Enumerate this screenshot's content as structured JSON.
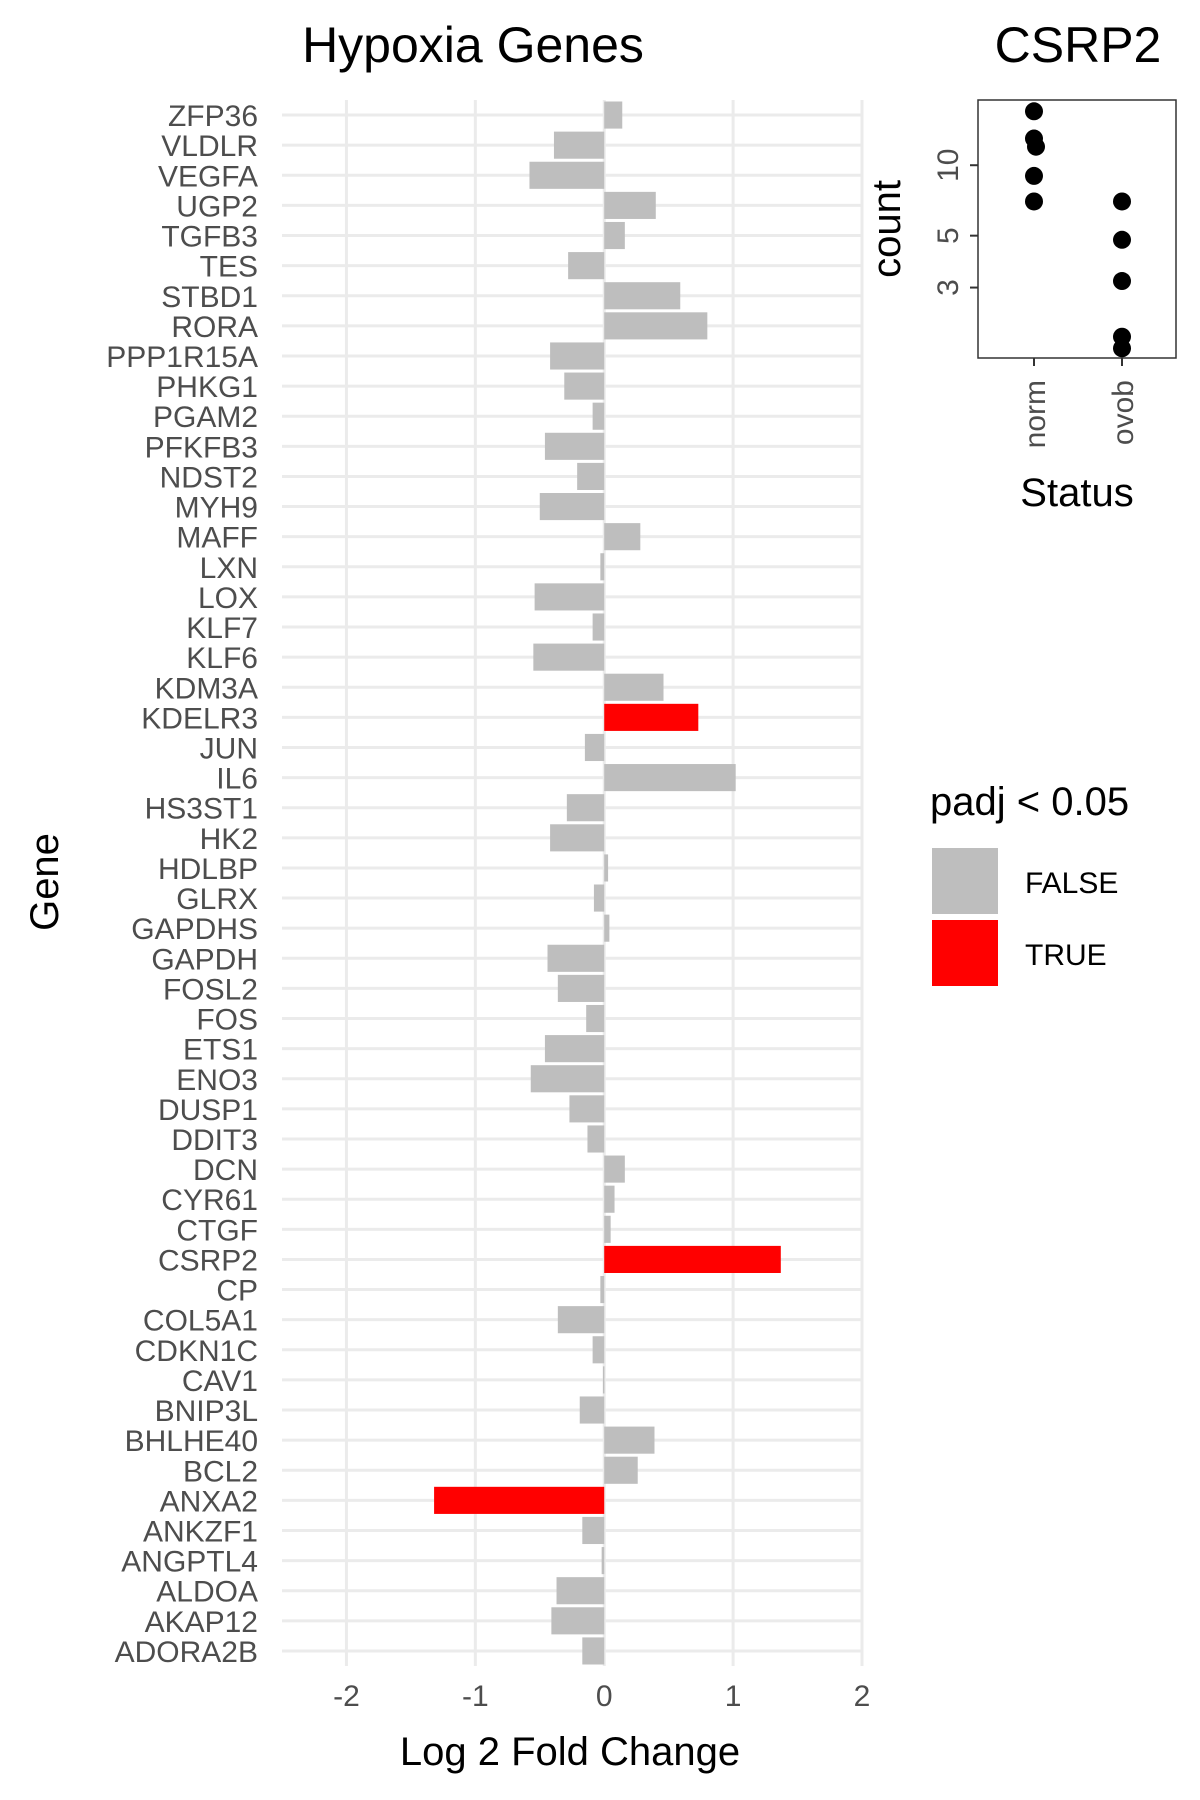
{
  "chart_data": [
    {
      "type": "bar",
      "orientation": "horizontal",
      "title": "Hypoxia Genes",
      "xlabel": "Log 2 Fold Change",
      "ylabel": "Gene",
      "xlim": [
        -2.5,
        2.0
      ],
      "xticks": [
        -2,
        -1,
        0,
        1,
        2
      ],
      "xtick_labels": [
        "-2",
        "-1",
        "0",
        "1",
        "2"
      ],
      "grid": true,
      "legend": {
        "title": "padj < 0.05",
        "placement": "right",
        "entries": [
          {
            "label": "FALSE",
            "color": "#bebebe"
          },
          {
            "label": "TRUE",
            "color": "#ff0000"
          }
        ]
      },
      "categories": [
        "ZFP36",
        "VLDLR",
        "VEGFA",
        "UGP2",
        "TGFB3",
        "TES",
        "STBD1",
        "RORA",
        "PPP1R15A",
        "PHKG1",
        "PGAM2",
        "PFKFB3",
        "NDST2",
        "MYH9",
        "MAFF",
        "LXN",
        "LOX",
        "KLF7",
        "KLF6",
        "KDM3A",
        "KDELR3",
        "JUN",
        "IL6",
        "HS3ST1",
        "HK2",
        "HDLBP",
        "GLRX",
        "GAPDHS",
        "GAPDH",
        "FOSL2",
        "FOS",
        "ETS1",
        "ENO3",
        "DUSP1",
        "DDIT3",
        "DCN",
        "CYR61",
        "CTGF",
        "CSRP2",
        "CP",
        "COL5A1",
        "CDKN1C",
        "CAV1",
        "BNIP3L",
        "BHLHE40",
        "BCL2",
        "ANXA2",
        "ANKZF1",
        "ANGPTL4",
        "ALDOA",
        "AKAP12",
        "ADORA2B"
      ],
      "values": [
        0.14,
        -0.39,
        -0.58,
        0.4,
        0.16,
        -0.28,
        0.59,
        0.8,
        -0.42,
        -0.31,
        -0.09,
        -0.46,
        -0.21,
        -0.5,
        0.28,
        -0.03,
        -0.54,
        -0.09,
        -0.55,
        0.46,
        0.73,
        -0.15,
        1.02,
        -0.29,
        -0.42,
        0.03,
        -0.08,
        0.04,
        -0.44,
        -0.36,
        -0.14,
        -0.46,
        -0.57,
        -0.27,
        -0.13,
        0.16,
        0.08,
        0.05,
        1.37,
        -0.03,
        -0.36,
        -0.09,
        -0.01,
        -0.19,
        0.39,
        0.26,
        -1.32,
        -0.17,
        -0.02,
        -0.37,
        -0.41,
        -0.17
      ],
      "significant": [
        false,
        false,
        false,
        false,
        false,
        false,
        false,
        false,
        false,
        false,
        false,
        false,
        false,
        false,
        false,
        false,
        false,
        false,
        false,
        false,
        true,
        false,
        false,
        false,
        false,
        false,
        false,
        false,
        false,
        false,
        false,
        false,
        false,
        false,
        false,
        false,
        false,
        false,
        true,
        false,
        false,
        false,
        false,
        false,
        false,
        false,
        true,
        false,
        false,
        false,
        false,
        false
      ]
    },
    {
      "type": "scatter",
      "title": "CSRP2",
      "xlabel": "Status",
      "ylabel": "count",
      "yscale": "log",
      "ylim": [
        1.5,
        19
      ],
      "yticks": [
        3,
        5,
        10
      ],
      "ytick_labels": [
        "3",
        "5",
        "10"
      ],
      "categories": [
        "norm",
        "ovob"
      ],
      "points": [
        {
          "x": "norm",
          "y": 17
        },
        {
          "x": "norm",
          "y": 13
        },
        {
          "x": "norm",
          "y": 12
        },
        {
          "x": "norm",
          "y": 9
        },
        {
          "x": "norm",
          "y": 7
        },
        {
          "x": "ovob",
          "y": 7
        },
        {
          "x": "ovob",
          "y": 4.8
        },
        {
          "x": "ovob",
          "y": 3.2
        },
        {
          "x": "ovob",
          "y": 1.85
        },
        {
          "x": "ovob",
          "y": 1.65
        }
      ],
      "point_color": "#000000",
      "panel_border": true
    }
  ],
  "colors": {
    "bar_false": "#bebebe",
    "bar_true": "#ff0000",
    "grid": "#ebebeb",
    "tick_text": "#4d4d4d"
  }
}
